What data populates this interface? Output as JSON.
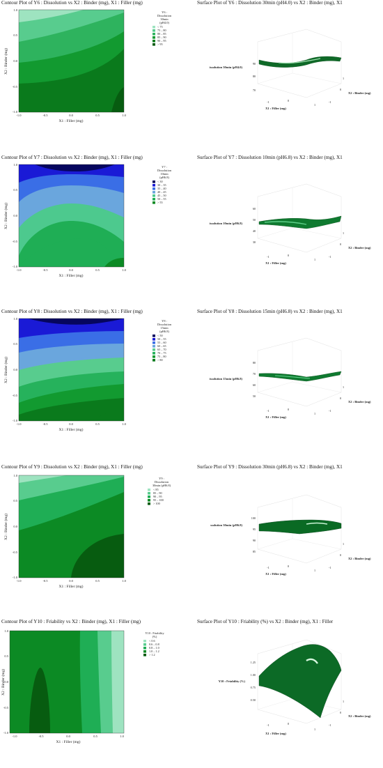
{
  "panels": [
    {
      "contour_title": "Contour Plot of Y6 : Dissolution vs X2 : Binder (mg), X1 : Filler (mg)",
      "surface_title": "Surface Plot of Y6 : Dissolution 30min (pH4.0) vs X2 : Binder (mg), X1",
      "legend_title": [
        "Y6 :",
        "Dissolution",
        "30min",
        "(pH4.0)"
      ],
      "legend_items": [
        {
          "label": "<  75",
          "color": "#9ee3c0"
        },
        {
          "label": "75  –  80",
          "color": "#58cc8e"
        },
        {
          "label": "80  –  85",
          "color": "#2eb35e"
        },
        {
          "label": "85  –  90",
          "color": "#129a30"
        },
        {
          "label": "90  –  95",
          "color": "#0a7a1c"
        },
        {
          "label": ">  95",
          "color": "#075c10"
        }
      ],
      "surface_zlabel": "issolution 30min (pH4.0)",
      "surface_zticks": [
        "90",
        "80",
        "70"
      ]
    },
    {
      "contour_title": "Contour Plot of Y7 : Dissolution vs X2 : Binder (mg), X1 : Filler (mg)",
      "surface_title": "Surface Plot of Y7 : Dissolution 10min (pH6.8) vs X2 : Binder (mg), X1",
      "legend_title": [
        "Y7 :",
        "Dissolution",
        "10min",
        "(pH6.8)"
      ],
      "legend_items": [
        {
          "label": "<  30",
          "color": "#06065e"
        },
        {
          "label": "30  –  35",
          "color": "#1a1ad6"
        },
        {
          "label": "35  –  40",
          "color": "#3a6ee6"
        },
        {
          "label": "40  –  45",
          "color": "#6aa6dd"
        },
        {
          "label": "45  –  50",
          "color": "#4dc98e"
        },
        {
          "label": "50  –  55",
          "color": "#1fae55"
        },
        {
          "label": ">  55",
          "color": "#0c8a24"
        }
      ],
      "surface_zlabel": "issolution 10min (pH6.8)",
      "surface_zticks": [
        "60",
        "50",
        "40",
        "30"
      ]
    },
    {
      "contour_title": "Contour Plot of Y8 : Dissolution vs X2 : Binder (mg), X1 : Filler (mg)",
      "surface_title": "Surface Plot of Y8 : Dissolution 15min (pH6.8) vs X2 : Binder (mg), X1",
      "legend_title": [
        "Y8 :",
        "Dissolution",
        "15min",
        "(pH6.8)"
      ],
      "legend_items": [
        {
          "label": "<  50",
          "color": "#06065e"
        },
        {
          "label": "50  –  55",
          "color": "#1a1ad6"
        },
        {
          "label": "55  –  60",
          "color": "#3a6ee6"
        },
        {
          "label": "60  –  65",
          "color": "#6aa6dd"
        },
        {
          "label": "65  –  70",
          "color": "#58cc8e"
        },
        {
          "label": "70  –  75",
          "color": "#26b25c"
        },
        {
          "label": "75  –  80",
          "color": "#129a30"
        },
        {
          "label": ">  80",
          "color": "#0a7a1c"
        }
      ],
      "surface_zlabel": "issolution 15min (pH6.8)",
      "surface_zticks": [
        "80",
        "70",
        "60",
        "50"
      ]
    },
    {
      "contour_title": "Contour Plot of Y9 : Dissolution vs X2 : Binder (mg), X1 : Filler (mg)",
      "surface_title": "Surface Plot of Y9 : Dissolution 30min (pH6.8) vs X2 : Binder (mg), X1",
      "legend_title": [
        "Y9 :",
        "Dissolution",
        "30min (pH6.8)"
      ],
      "legend_items": [
        {
          "label": "<  85",
          "color": "#9ee3c0"
        },
        {
          "label": "85  –  90",
          "color": "#58cc8e"
        },
        {
          "label": "90  –  95",
          "color": "#1fae55"
        },
        {
          "label": "95  –  100",
          "color": "#0c8a24"
        },
        {
          "label": ">  100",
          "color": "#075c10"
        }
      ],
      "surface_zlabel": "ssolution 30min (pH6.8)",
      "surface_zticks": [
        "100",
        "95",
        "90",
        "85"
      ]
    },
    {
      "contour_title": "Contour Plot of Y10 : Friability vs X2 : Binder (mg), X1 : Filler (mg)",
      "surface_title": "Surface Plot of Y10 : Friability (%) vs X2 : Binder (mg), X1 : Filler",
      "legend_title": [
        "Y10 : Friability",
        "(%)"
      ],
      "legend_items": [
        {
          "label": "<  0.6",
          "color": "#9ee3c0"
        },
        {
          "label": "0.6  –  0.8",
          "color": "#58cc8e"
        },
        {
          "label": "0.8  –  1.0",
          "color": "#1fae55"
        },
        {
          "label": "1.0  –  1.2",
          "color": "#0c8a24"
        },
        {
          "label": ">  1.2",
          "color": "#075c10"
        }
      ],
      "surface_zlabel": "Y10 : Friability (%)",
      "surface_zticks": [
        "1.25",
        "1.00",
        "0.75",
        "0.50"
      ]
    }
  ],
  "axes": {
    "x_label": "X1 : Filler (mg)",
    "y_label": "X2 : Binder (mg)",
    "x_ticks": [
      "-1.0",
      "-0.5",
      "0.0",
      "0.5",
      "1.0"
    ],
    "y_ticks": [
      "1.0",
      "0.5",
      "0.0",
      "-0.5",
      "-1.0"
    ],
    "surface_x_label": "X1 : Filler (mg)",
    "surface_y_label": "X2 : Binder (mg)",
    "surface_x_ticks": [
      "-1",
      "0",
      "1"
    ],
    "surface_y_ticks": [
      "1",
      "0",
      "-1"
    ]
  },
  "chart_data": [
    {
      "type": "heatmap",
      "title": "Contour Plot of Y6 : Dissolution vs X2 : Binder (mg), X1 : Filler (mg)",
      "xlabel": "X1 : Filler (mg)",
      "ylabel": "X2 : Binder (mg)",
      "xlim": [
        -1,
        1
      ],
      "ylim": [
        -1,
        1
      ],
      "levels": [
        "< 75",
        "75 – 80",
        "80 – 85",
        "85 – 90",
        "90 – 95",
        "> 95"
      ]
    },
    {
      "type": "heatmap",
      "title": "Contour Plot of Y7 : Dissolution vs X2 : Binder (mg), X1 : Filler (mg)",
      "xlabel": "X1 : Filler (mg)",
      "ylabel": "X2 : Binder (mg)",
      "xlim": [
        -1,
        1
      ],
      "ylim": [
        -1,
        1
      ],
      "levels": [
        "< 30",
        "30 – 35",
        "35 – 40",
        "40 – 45",
        "45 – 50",
        "50 – 55",
        "> 55"
      ]
    },
    {
      "type": "heatmap",
      "title": "Contour Plot of Y8 : Dissolution vs X2 : Binder (mg), X1 : Filler (mg)",
      "xlabel": "X1 : Filler (mg)",
      "ylabel": "X2 : Binder (mg)",
      "xlim": [
        -1,
        1
      ],
      "ylim": [
        -1,
        1
      ],
      "levels": [
        "< 50",
        "50 – 55",
        "55 – 60",
        "60 – 65",
        "65 – 70",
        "70 – 75",
        "75 – 80",
        "> 80"
      ]
    },
    {
      "type": "heatmap",
      "title": "Contour Plot of Y9 : Dissolution vs X2 : Binder (mg), X1 : Filler (mg)",
      "xlabel": "X1 : Filler (mg)",
      "ylabel": "X2 : Binder (mg)",
      "xlim": [
        -1,
        1
      ],
      "ylim": [
        -1,
        1
      ],
      "levels": [
        "< 85",
        "85 – 90",
        "90 – 95",
        "95 – 100",
        "> 100"
      ]
    },
    {
      "type": "heatmap",
      "title": "Contour Plot of Y10 : Friability vs X2 : Binder (mg), X1 : Filler (mg)",
      "xlabel": "X1 : Filler (mg)",
      "ylabel": "X2 : Binder (mg)",
      "xlim": [
        -1,
        1
      ],
      "ylim": [
        -1,
        1
      ],
      "levels": [
        "< 0.6",
        "0.6 – 0.8",
        "0.8 – 1.0",
        "1.0 – 1.2",
        "> 1.2"
      ]
    }
  ]
}
